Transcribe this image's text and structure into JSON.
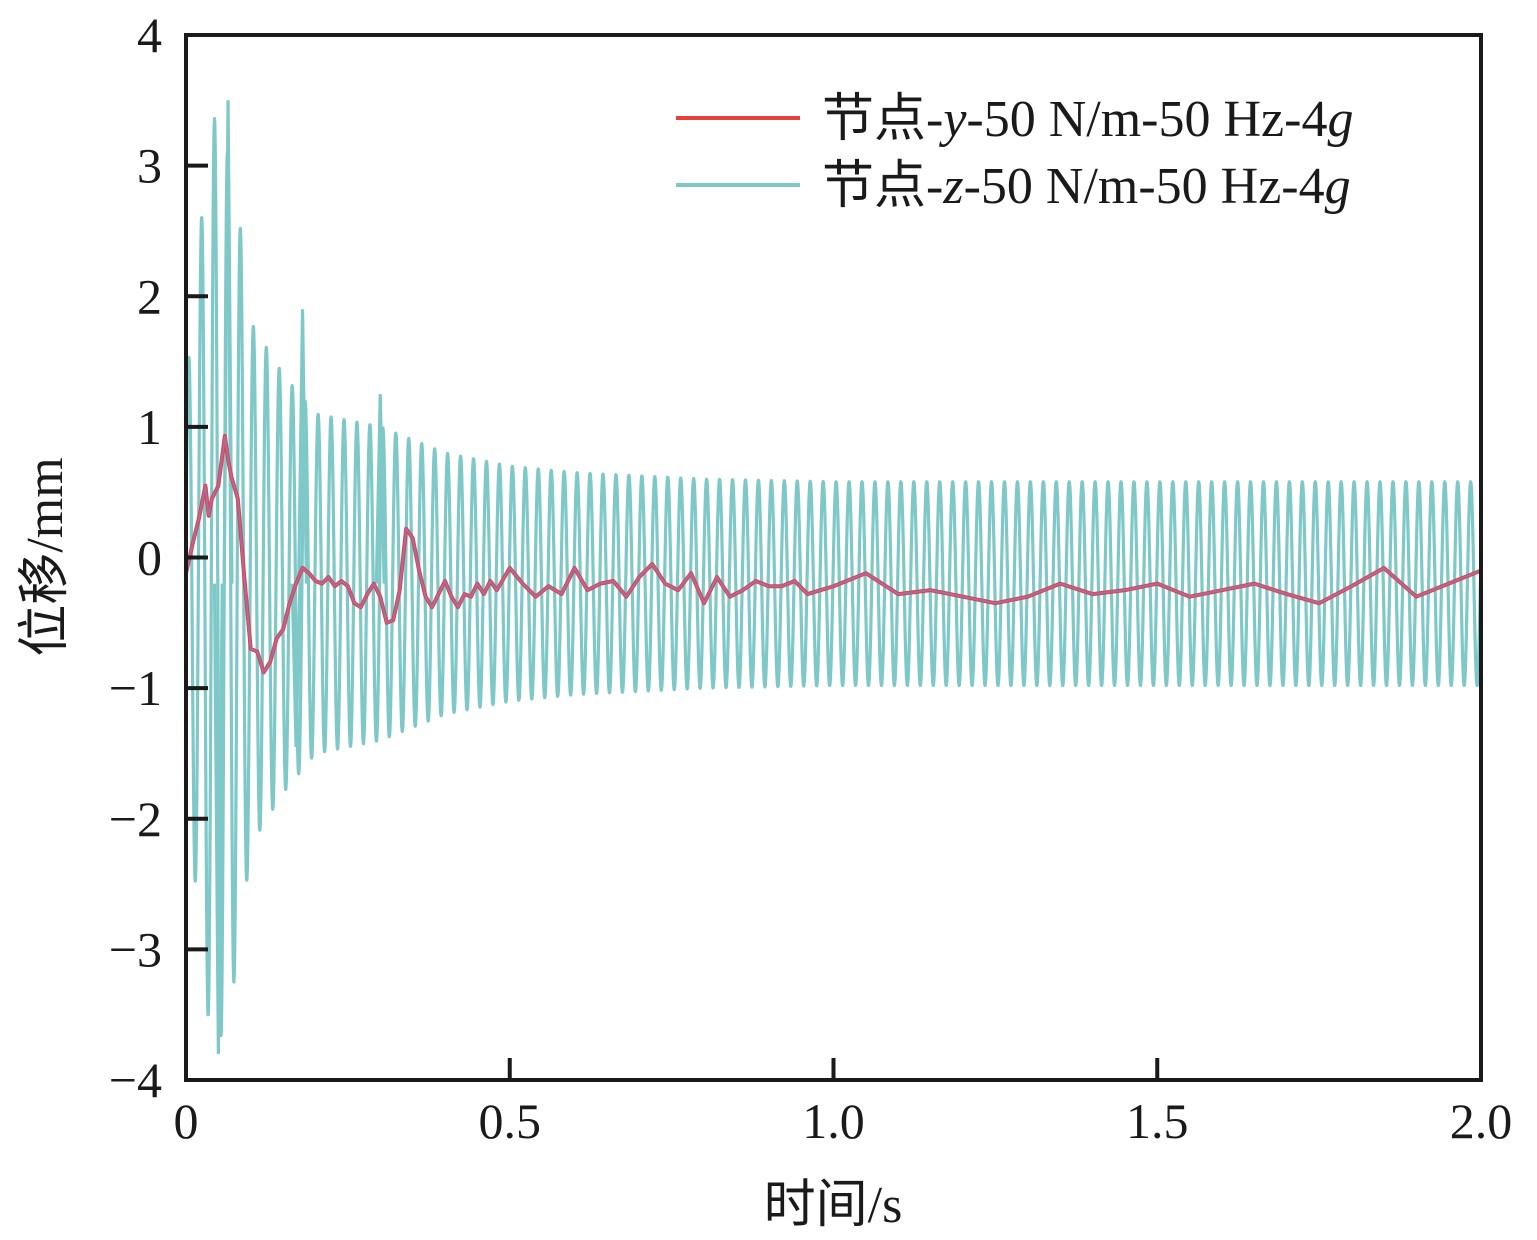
{
  "chart_data": {
    "type": "line",
    "title": "",
    "xlabel": "时间/s",
    "ylabel": "位移/mm",
    "xlim": [
      0,
      2.0
    ],
    "ylim": [
      -4,
      4
    ],
    "x_ticks": [
      0,
      0.5,
      1.0,
      1.5,
      2.0
    ],
    "x_tick_labels": [
      "0",
      "0.5",
      "1.0",
      "1.5",
      "2.0"
    ],
    "y_ticks": [
      -4,
      -3,
      -2,
      -1,
      0,
      1,
      2,
      3,
      4
    ],
    "y_tick_labels": [
      "−4",
      "−3",
      "−2",
      "−1",
      "0",
      "1",
      "2",
      "3",
      "4"
    ],
    "grid": false,
    "legend_position": "top-right",
    "series": [
      {
        "name": "节点-y-50 N/m-50 Hz-4g",
        "legend_parts": [
          "节点-",
          "y",
          "-50 N/m-50 Hz-4",
          "g"
        ],
        "color": "#e8403a",
        "x": [
          0.0,
          0.01,
          0.02,
          0.03,
          0.035,
          0.04,
          0.05,
          0.06,
          0.065,
          0.07,
          0.08,
          0.09,
          0.1,
          0.11,
          0.12,
          0.13,
          0.14,
          0.15,
          0.16,
          0.17,
          0.18,
          0.19,
          0.2,
          0.21,
          0.22,
          0.23,
          0.24,
          0.25,
          0.26,
          0.27,
          0.28,
          0.29,
          0.3,
          0.31,
          0.32,
          0.33,
          0.34,
          0.35,
          0.36,
          0.37,
          0.38,
          0.39,
          0.4,
          0.41,
          0.42,
          0.43,
          0.44,
          0.45,
          0.46,
          0.47,
          0.48,
          0.5,
          0.52,
          0.54,
          0.56,
          0.58,
          0.6,
          0.62,
          0.64,
          0.66,
          0.68,
          0.7,
          0.72,
          0.74,
          0.76,
          0.78,
          0.8,
          0.82,
          0.84,
          0.86,
          0.88,
          0.9,
          0.92,
          0.94,
          0.96,
          0.98,
          1.0,
          1.05,
          1.1,
          1.15,
          1.2,
          1.25,
          1.3,
          1.35,
          1.4,
          1.45,
          1.5,
          1.55,
          1.6,
          1.65,
          1.7,
          1.75,
          1.8,
          1.85,
          1.9,
          1.95,
          2.0
        ],
        "y": [
          -0.12,
          0.1,
          0.3,
          0.55,
          0.32,
          0.45,
          0.55,
          0.93,
          0.75,
          0.62,
          0.45,
          -0.15,
          -0.7,
          -0.72,
          -0.88,
          -0.8,
          -0.62,
          -0.55,
          -0.35,
          -0.2,
          -0.08,
          -0.12,
          -0.18,
          -0.2,
          -0.15,
          -0.22,
          -0.18,
          -0.22,
          -0.35,
          -0.38,
          -0.28,
          -0.2,
          -0.3,
          -0.5,
          -0.48,
          -0.25,
          0.22,
          0.15,
          -0.1,
          -0.3,
          -0.38,
          -0.28,
          -0.18,
          -0.3,
          -0.38,
          -0.28,
          -0.3,
          -0.2,
          -0.28,
          -0.18,
          -0.25,
          -0.08,
          -0.2,
          -0.3,
          -0.22,
          -0.28,
          -0.08,
          -0.25,
          -0.2,
          -0.18,
          -0.3,
          -0.15,
          -0.05,
          -0.2,
          -0.25,
          -0.12,
          -0.35,
          -0.15,
          -0.3,
          -0.25,
          -0.18,
          -0.22,
          -0.22,
          -0.18,
          -0.28,
          -0.25,
          -0.22,
          -0.12,
          -0.28,
          -0.25,
          -0.3,
          -0.35,
          -0.3,
          -0.2,
          -0.28,
          -0.25,
          -0.2,
          -0.3,
          -0.25,
          -0.2,
          -0.28,
          -0.35,
          -0.22,
          -0.08,
          -0.3,
          -0.2,
          -0.1
        ]
      },
      {
        "name": "节点-z-50 N/m-50 Hz-4g",
        "legend_parts": [
          "节点-",
          "z",
          "-50 N/m-50 Hz-4",
          "g"
        ],
        "color": "#7ec8c8",
        "frequency_hz": 50,
        "offset": -0.2,
        "envelope_t": [
          0.0,
          0.02,
          0.04,
          0.06,
          0.08,
          0.1,
          0.15,
          0.2,
          0.3,
          0.4,
          0.5,
          0.6,
          0.8,
          1.0,
          1.5,
          2.0
        ],
        "envelope_amp": [
          1.5,
          2.6,
          3.6,
          3.4,
          2.9,
          2.0,
          1.6,
          1.3,
          1.2,
          1.0,
          0.9,
          0.85,
          0.8,
          0.78,
          0.78,
          0.78
        ],
        "peaks": [
          {
            "x": 0.065,
            "y": 3.5
          },
          {
            "x": 0.05,
            "y": -3.8
          },
          {
            "x": 0.18,
            "y": 1.9
          },
          {
            "x": 0.3,
            "y": 1.25
          },
          {
            "x": 0.17,
            "y": -1.45
          }
        ]
      }
    ]
  }
}
